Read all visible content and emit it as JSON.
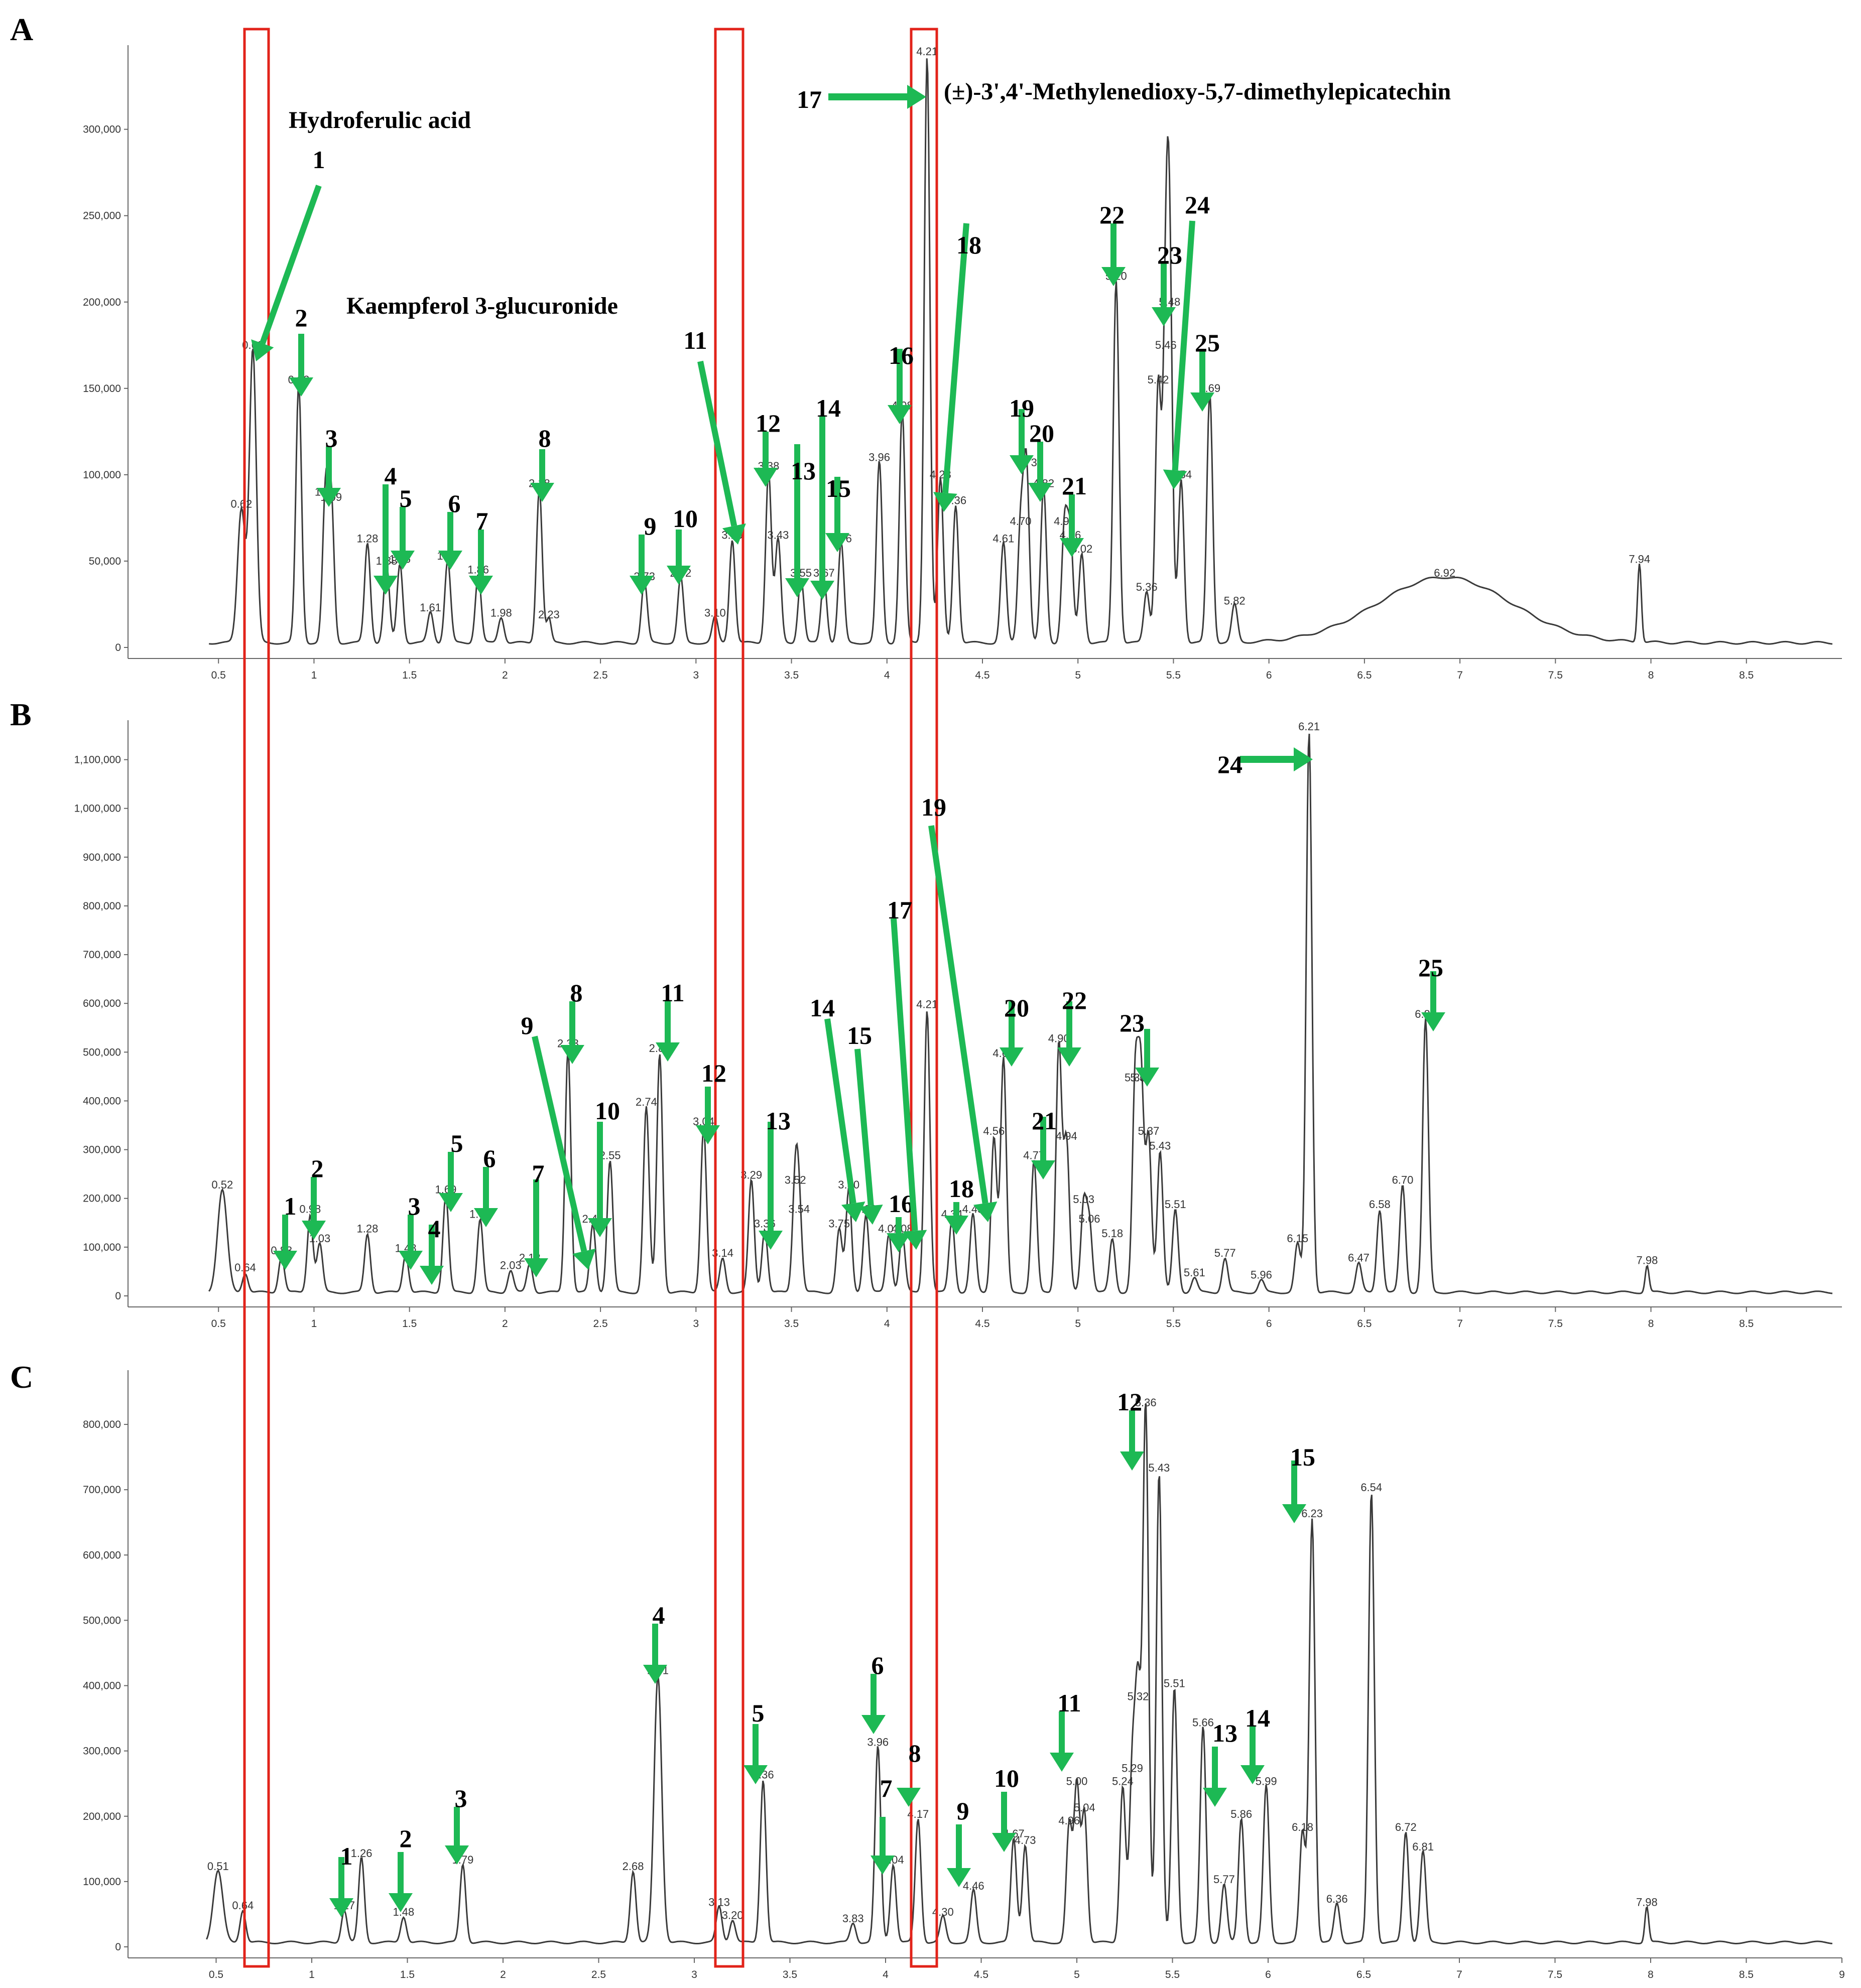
{
  "colors": {
    "trace": "#3a3a3a",
    "arrow": "#1db954",
    "highlight_box": "#e2231a"
  },
  "chart_data": [
    {
      "type": "line",
      "panel": "A",
      "xlim": [
        0.0,
        9.0
      ],
      "ylim": [
        0,
        340000
      ],
      "xticks": [
        "0.5",
        "1",
        "1.5",
        "2",
        "2.5",
        "3",
        "3.5",
        "4",
        "4.5",
        "5",
        "5.5",
        "6",
        "6.5",
        "7",
        "7.5",
        "8",
        "8.5"
      ],
      "yticks": [
        "0",
        "50,000",
        "100,000",
        "150,000",
        "200,000",
        "250,000",
        "300,000"
      ],
      "ytick_values": [
        0,
        50000,
        100000,
        150000,
        200000,
        250000,
        300000
      ],
      "baseline": 2000,
      "peaks": [
        {
          "x": 0.62,
          "y": 78000,
          "w": 0.02,
          "label": "0.62"
        },
        {
          "x": 0.68,
          "y": 170000,
          "w": 0.018,
          "label": "0.68"
        },
        {
          "x": 0.92,
          "y": 150000,
          "w": 0.015,
          "label": "0.92"
        },
        {
          "x": 1.06,
          "y": 85000,
          "w": 0.015,
          "label": "1.06"
        },
        {
          "x": 1.09,
          "y": 82000,
          "w": 0.015,
          "label": "1.09"
        },
        {
          "x": 1.28,
          "y": 58000,
          "w": 0.015,
          "label": "1.28"
        },
        {
          "x": 1.38,
          "y": 45000,
          "w": 0.015,
          "label": "1.38"
        },
        {
          "x": 1.45,
          "y": 46000,
          "w": 0.015,
          "label": "1.45"
        },
        {
          "x": 1.61,
          "y": 18000,
          "w": 0.015,
          "label": "1.61"
        },
        {
          "x": 1.7,
          "y": 48000,
          "w": 0.015,
          "label": "1.70"
        },
        {
          "x": 1.86,
          "y": 40000,
          "w": 0.015,
          "label": "1.86"
        },
        {
          "x": 1.98,
          "y": 15000,
          "w": 0.015,
          "label": "1.98"
        },
        {
          "x": 2.18,
          "y": 90000,
          "w": 0.015,
          "label": "2.18"
        },
        {
          "x": 2.23,
          "y": 14000,
          "w": 0.012,
          "label": "2.23"
        },
        {
          "x": 2.73,
          "y": 36000,
          "w": 0.015,
          "label": "2.73"
        },
        {
          "x": 2.92,
          "y": 38000,
          "w": 0.015,
          "label": "2.92"
        },
        {
          "x": 3.1,
          "y": 15000,
          "w": 0.015,
          "label": "3.10"
        },
        {
          "x": 3.19,
          "y": 60000,
          "w": 0.015,
          "label": "3.19"
        },
        {
          "x": 3.38,
          "y": 100000,
          "w": 0.015,
          "label": "3.38"
        },
        {
          "x": 3.43,
          "y": 60000,
          "w": 0.015,
          "label": "3.43"
        },
        {
          "x": 3.55,
          "y": 38000,
          "w": 0.015,
          "label": "3.55"
        },
        {
          "x": 3.67,
          "y": 38000,
          "w": 0.015,
          "label": "3.67"
        },
        {
          "x": 3.76,
          "y": 58000,
          "w": 0.015,
          "label": "3.76"
        },
        {
          "x": 3.96,
          "y": 105000,
          "w": 0.015,
          "label": "3.96"
        },
        {
          "x": 4.08,
          "y": 135000,
          "w": 0.015,
          "label": "4.08"
        },
        {
          "x": 4.21,
          "y": 340000,
          "w": 0.015,
          "label": "4.21"
        },
        {
          "x": 4.28,
          "y": 95000,
          "w": 0.015,
          "label": "4.28"
        },
        {
          "x": 4.36,
          "y": 80000,
          "w": 0.015,
          "label": "4.36"
        },
        {
          "x": 4.61,
          "y": 58000,
          "w": 0.015,
          "label": "4.61"
        },
        {
          "x": 4.7,
          "y": 68000,
          "w": 0.015,
          "label": "4.70"
        },
        {
          "x": 4.73,
          "y": 102000,
          "w": 0.015,
          "label": "4.73"
        },
        {
          "x": 4.82,
          "y": 90000,
          "w": 0.015,
          "label": "4.82"
        },
        {
          "x": 4.93,
          "y": 68000,
          "w": 0.015,
          "label": "4.93"
        },
        {
          "x": 4.96,
          "y": 60000,
          "w": 0.015,
          "label": "4.96"
        },
        {
          "x": 5.02,
          "y": 52000,
          "w": 0.015,
          "label": "5.02"
        },
        {
          "x": 5.2,
          "y": 210000,
          "w": 0.015,
          "label": "5.20"
        },
        {
          "x": 5.36,
          "y": 30000,
          "w": 0.015,
          "label": "5.36"
        },
        {
          "x": 5.42,
          "y": 150000,
          "w": 0.015,
          "label": "5.42"
        },
        {
          "x": 5.46,
          "y": 170000,
          "w": 0.015,
          "label": "5.46"
        },
        {
          "x": 5.48,
          "y": 195000,
          "w": 0.015,
          "label": "5.48"
        },
        {
          "x": 5.54,
          "y": 95000,
          "w": 0.015,
          "label": "5.54"
        },
        {
          "x": 5.69,
          "y": 145000,
          "w": 0.015,
          "label": "5.69"
        },
        {
          "x": 5.82,
          "y": 22000,
          "w": 0.015,
          "label": "5.82"
        },
        {
          "x": 6.92,
          "y": 38000,
          "w": 0.35,
          "label": "6.92"
        },
        {
          "x": 7.94,
          "y": 46000,
          "w": 0.01,
          "label": "7.94"
        }
      ],
      "annotations": {
        "numbers": [
          "1",
          "2",
          "3",
          "4",
          "5",
          "6",
          "7",
          "8",
          "9",
          "10",
          "11",
          "12",
          "13",
          "14",
          "15",
          "16",
          "17",
          "18",
          "19",
          "20",
          "21",
          "22",
          "23",
          "24",
          "25"
        ],
        "compounds": [
          "Hydroferulic acid",
          "Kaempferol 3-glucuronide",
          "(±)-3',4'-Methylenedioxy-5,7-dimethylepicatechin"
        ]
      }
    },
    {
      "type": "line",
      "panel": "B",
      "xlim": [
        0.0,
        9.0
      ],
      "ylim": [
        0,
        1150000
      ],
      "xticks": [
        "0.5",
        "1",
        "1.5",
        "2",
        "2.5",
        "3",
        "3.5",
        "4",
        "4.5",
        "5",
        "5.5",
        "6",
        "6.5",
        "7",
        "7.5",
        "8",
        "8.5"
      ],
      "yticks": [
        "0",
        "100,000",
        "200,000",
        "300,000",
        "400,000",
        "500,000",
        "600,000",
        "700,000",
        "800,000",
        "900,000",
        "1,000,000",
        "1,100,000"
      ],
      "ytick_values": [
        0,
        100000,
        200000,
        300000,
        400000,
        500000,
        600000,
        700000,
        800000,
        900000,
        1000000,
        1100000
      ],
      "baseline": 5000,
      "peaks": [
        {
          "x": 0.52,
          "y": 210000,
          "w": 0.025,
          "label": "0.52"
        },
        {
          "x": 0.64,
          "y": 40000,
          "w": 0.015,
          "label": "0.64"
        },
        {
          "x": 0.83,
          "y": 75000,
          "w": 0.015,
          "label": "0.83"
        },
        {
          "x": 0.98,
          "y": 160000,
          "w": 0.015,
          "label": "0.98"
        },
        {
          "x": 1.03,
          "y": 100000,
          "w": 0.015,
          "label": "1.03"
        },
        {
          "x": 1.28,
          "y": 120000,
          "w": 0.015,
          "label": "1.28"
        },
        {
          "x": 1.48,
          "y": 80000,
          "w": 0.015,
          "label": "1.48"
        },
        {
          "x": 1.69,
          "y": 200000,
          "w": 0.015,
          "label": "1.69"
        },
        {
          "x": 1.87,
          "y": 150000,
          "w": 0.015,
          "label": "1.87"
        },
        {
          "x": 2.03,
          "y": 45000,
          "w": 0.015,
          "label": "2.03"
        },
        {
          "x": 2.13,
          "y": 60000,
          "w": 0.015,
          "label": "2.13"
        },
        {
          "x": 2.33,
          "y": 500000,
          "w": 0.015,
          "label": "2.33"
        },
        {
          "x": 2.46,
          "y": 140000,
          "w": 0.015,
          "label": "2.46"
        },
        {
          "x": 2.55,
          "y": 270000,
          "w": 0.015,
          "label": "2.55"
        },
        {
          "x": 2.74,
          "y": 380000,
          "w": 0.015,
          "label": "2.74"
        },
        {
          "x": 2.81,
          "y": 490000,
          "w": 0.015,
          "label": "2.81"
        },
        {
          "x": 3.04,
          "y": 340000,
          "w": 0.015,
          "label": "3.04"
        },
        {
          "x": 3.14,
          "y": 70000,
          "w": 0.015,
          "label": "3.14"
        },
        {
          "x": 3.29,
          "y": 230000,
          "w": 0.015,
          "label": "3.29"
        },
        {
          "x": 3.36,
          "y": 130000,
          "w": 0.015,
          "label": "3.36"
        },
        {
          "x": 3.52,
          "y": 220000,
          "w": 0.015,
          "label": "3.52"
        },
        {
          "x": 3.54,
          "y": 160000,
          "w": 0.015,
          "label": "3.54"
        },
        {
          "x": 3.75,
          "y": 130000,
          "w": 0.015,
          "label": "3.75"
        },
        {
          "x": 3.8,
          "y": 210000,
          "w": 0.015,
          "label": "3.80"
        },
        {
          "x": 3.89,
          "y": 160000,
          "w": 0.015,
          "label": "3.89"
        },
        {
          "x": 4.01,
          "y": 120000,
          "w": 0.015,
          "label": "4.01"
        },
        {
          "x": 4.08,
          "y": 120000,
          "w": 0.015,
          "label": "4.08"
        },
        {
          "x": 4.21,
          "y": 580000,
          "w": 0.015,
          "label": "4.21"
        },
        {
          "x": 4.34,
          "y": 150000,
          "w": 0.015,
          "label": "4.34"
        },
        {
          "x": 4.45,
          "y": 160000,
          "w": 0.015,
          "label": "4.45"
        },
        {
          "x": 4.56,
          "y": 320000,
          "w": 0.015,
          "label": "4.56"
        },
        {
          "x": 4.61,
          "y": 480000,
          "w": 0.015,
          "label": "4.61"
        },
        {
          "x": 4.77,
          "y": 270000,
          "w": 0.015,
          "label": "4.77"
        },
        {
          "x": 4.9,
          "y": 510000,
          "w": 0.015,
          "label": "4.90"
        },
        {
          "x": 4.94,
          "y": 310000,
          "w": 0.015,
          "label": "4.94"
        },
        {
          "x": 5.03,
          "y": 180000,
          "w": 0.015,
          "label": "5.03"
        },
        {
          "x": 5.06,
          "y": 140000,
          "w": 0.015,
          "label": "5.06"
        },
        {
          "x": 5.18,
          "y": 110000,
          "w": 0.015,
          "label": "5.18"
        },
        {
          "x": 5.3,
          "y": 430000,
          "w": 0.015,
          "label": "5.30"
        },
        {
          "x": 5.33,
          "y": 430000,
          "w": 0.015,
          "label": "5.33"
        },
        {
          "x": 5.37,
          "y": 320000,
          "w": 0.015,
          "label": "5.37"
        },
        {
          "x": 5.43,
          "y": 290000,
          "w": 0.015,
          "label": "5.43"
        },
        {
          "x": 5.51,
          "y": 170000,
          "w": 0.015,
          "label": "5.51"
        },
        {
          "x": 5.61,
          "y": 30000,
          "w": 0.015,
          "label": "5.61"
        },
        {
          "x": 5.77,
          "y": 70000,
          "w": 0.015,
          "label": "5.77"
        },
        {
          "x": 5.96,
          "y": 25000,
          "w": 0.015,
          "label": "5.96"
        },
        {
          "x": 6.15,
          "y": 100000,
          "w": 0.015,
          "label": "6.15"
        },
        {
          "x": 6.21,
          "y": 1150000,
          "w": 0.015,
          "label": "6.21"
        },
        {
          "x": 6.47,
          "y": 60000,
          "w": 0.015,
          "label": "6.47"
        },
        {
          "x": 6.58,
          "y": 170000,
          "w": 0.015,
          "label": "6.58"
        },
        {
          "x": 6.7,
          "y": 220000,
          "w": 0.015,
          "label": "6.70"
        },
        {
          "x": 6.82,
          "y": 560000,
          "w": 0.015,
          "label": "6.82"
        },
        {
          "x": 7.98,
          "y": 55000,
          "w": 0.01,
          "label": "7.98"
        }
      ],
      "annotations": {
        "numbers": [
          "1",
          "2",
          "3",
          "4",
          "5",
          "6",
          "7",
          "8",
          "9",
          "10",
          "11",
          "12",
          "13",
          "14",
          "15",
          "16",
          "17",
          "18",
          "19",
          "20",
          "21",
          "22",
          "23",
          "24",
          "25"
        ]
      }
    },
    {
      "type": "line",
      "panel": "C",
      "xlim": [
        0.0,
        9.0
      ],
      "ylim": [
        0,
        860000
      ],
      "xticks": [
        "0.5",
        "1",
        "1.5",
        "2",
        "2.5",
        "3",
        "3.5",
        "4",
        "4.5",
        "5",
        "5.5",
        "6",
        "6.5",
        "7",
        "7.5",
        "8",
        "8.5",
        "9"
      ],
      "yticks": [
        "0",
        "100,000",
        "200,000",
        "300,000",
        "400,000",
        "500,000",
        "600,000",
        "700,000",
        "800,000"
      ],
      "ytick_values": [
        0,
        100000,
        200000,
        300000,
        400000,
        500000,
        600000,
        700000,
        800000
      ],
      "baseline": 5000,
      "peaks": [
        {
          "x": 0.51,
          "y": 110000,
          "w": 0.025,
          "label": "0.51"
        },
        {
          "x": 0.64,
          "y": 50000,
          "w": 0.015,
          "label": "0.64"
        },
        {
          "x": 1.17,
          "y": 50000,
          "w": 0.015,
          "label": "1.17"
        },
        {
          "x": 1.26,
          "y": 130000,
          "w": 0.015,
          "label": "1.26"
        },
        {
          "x": 1.48,
          "y": 40000,
          "w": 0.015,
          "label": "1.48"
        },
        {
          "x": 1.79,
          "y": 120000,
          "w": 0.015,
          "label": "1.79"
        },
        {
          "x": 2.68,
          "y": 110000,
          "w": 0.015,
          "label": "2.68"
        },
        {
          "x": 2.81,
          "y": 410000,
          "w": 0.02,
          "label": "2.81"
        },
        {
          "x": 3.13,
          "y": 55000,
          "w": 0.015,
          "label": "3.13"
        },
        {
          "x": 3.2,
          "y": 35000,
          "w": 0.015,
          "label": "3.20"
        },
        {
          "x": 3.36,
          "y": 250000,
          "w": 0.015,
          "label": "3.36"
        },
        {
          "x": 3.83,
          "y": 30000,
          "w": 0.015,
          "label": "3.83"
        },
        {
          "x": 3.96,
          "y": 300000,
          "w": 0.015,
          "label": "3.96"
        },
        {
          "x": 4.04,
          "y": 120000,
          "w": 0.015,
          "label": "4.04"
        },
        {
          "x": 4.17,
          "y": 190000,
          "w": 0.015,
          "label": "4.17"
        },
        {
          "x": 4.3,
          "y": 40000,
          "w": 0.015,
          "label": "4.30"
        },
        {
          "x": 4.46,
          "y": 80000,
          "w": 0.015,
          "label": "4.46"
        },
        {
          "x": 4.67,
          "y": 160000,
          "w": 0.015,
          "label": "4.67"
        },
        {
          "x": 4.73,
          "y": 150000,
          "w": 0.015,
          "label": "4.73"
        },
        {
          "x": 4.96,
          "y": 180000,
          "w": 0.015,
          "label": "4.96"
        },
        {
          "x": 5.0,
          "y": 240000,
          "w": 0.015,
          "label": "5.00"
        },
        {
          "x": 5.04,
          "y": 200000,
          "w": 0.015,
          "label": "5.04"
        },
        {
          "x": 5.24,
          "y": 240000,
          "w": 0.015,
          "label": "5.24"
        },
        {
          "x": 5.29,
          "y": 260000,
          "w": 0.015,
          "label": "5.29"
        },
        {
          "x": 5.32,
          "y": 370000,
          "w": 0.015,
          "label": "5.32"
        },
        {
          "x": 5.36,
          "y": 820000,
          "w": 0.015,
          "label": "5.36"
        },
        {
          "x": 5.43,
          "y": 720000,
          "w": 0.015,
          "label": "5.43"
        },
        {
          "x": 5.51,
          "y": 390000,
          "w": 0.015,
          "label": "5.51"
        },
        {
          "x": 5.66,
          "y": 330000,
          "w": 0.015,
          "label": "5.66"
        },
        {
          "x": 5.77,
          "y": 90000,
          "w": 0.015,
          "label": "5.77"
        },
        {
          "x": 5.86,
          "y": 190000,
          "w": 0.015,
          "label": "5.86"
        },
        {
          "x": 5.99,
          "y": 240000,
          "w": 0.015,
          "label": "5.99"
        },
        {
          "x": 6.18,
          "y": 170000,
          "w": 0.015,
          "label": "6.18"
        },
        {
          "x": 6.23,
          "y": 650000,
          "w": 0.015,
          "label": "6.23"
        },
        {
          "x": 6.36,
          "y": 60000,
          "w": 0.015,
          "label": "6.36"
        },
        {
          "x": 6.54,
          "y": 690000,
          "w": 0.015,
          "label": "6.54"
        },
        {
          "x": 6.72,
          "y": 170000,
          "w": 0.015,
          "label": "6.72"
        },
        {
          "x": 6.81,
          "y": 140000,
          "w": 0.015,
          "label": "6.81"
        },
        {
          "x": 7.98,
          "y": 55000,
          "w": 0.01,
          "label": "7.98"
        }
      ],
      "annotations": {
        "numbers": [
          "1",
          "2",
          "3",
          "4",
          "5",
          "6",
          "7",
          "8",
          "9",
          "10",
          "11",
          "12",
          "13",
          "14",
          "15"
        ]
      }
    }
  ]
}
